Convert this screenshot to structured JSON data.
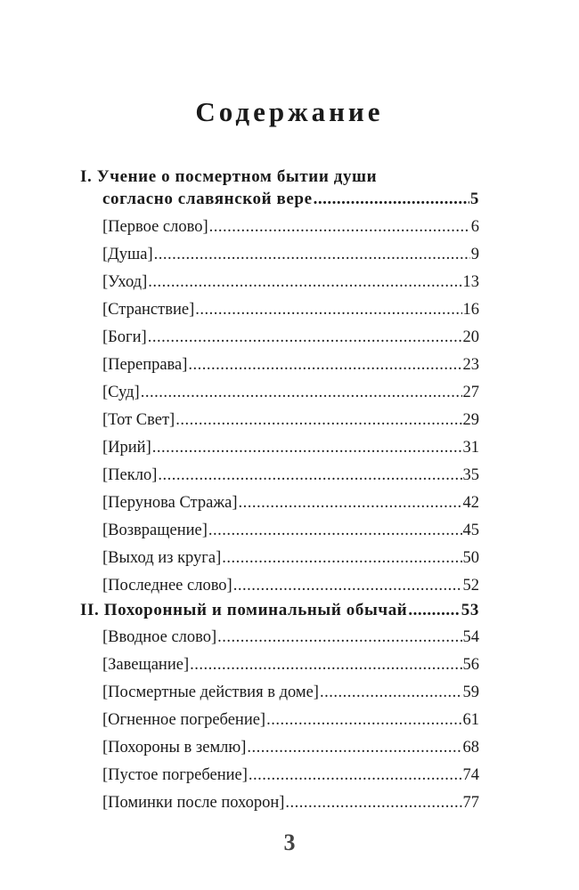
{
  "title": "Содержание",
  "sections": [
    {
      "number": "I.",
      "title_line1": "Учение о посмертном бытии души",
      "title_line2": "согласно славянской вере",
      "page": "5",
      "items": [
        {
          "label": "[Первое слово]",
          "page": "6"
        },
        {
          "label": "[Душа]",
          "page": "9"
        },
        {
          "label": "[Уход]",
          "page": "13"
        },
        {
          "label": "[Странствие]",
          "page": "16"
        },
        {
          "label": "[Боги]",
          "page": "20"
        },
        {
          "label": "[Переправа]",
          "page": "23"
        },
        {
          "label": "[Суд]",
          "page": "27"
        },
        {
          "label": "[Тот Свет]",
          "page": "29"
        },
        {
          "label": "[Ирий]",
          "page": "31"
        },
        {
          "label": "[Пекло]",
          "page": "35"
        },
        {
          "label": "[Перунова Стража]",
          "page": "42"
        },
        {
          "label": "[Возвращение]",
          "page": "45"
        },
        {
          "label": "[Выход из круга]",
          "page": "50"
        },
        {
          "label": "[Последнее слово]",
          "page": "52"
        }
      ]
    },
    {
      "number": "II.",
      "title_line1": "Похоронный и поминальный обычай",
      "page": "53",
      "items": [
        {
          "label": "[Вводное слово]",
          "page": "54"
        },
        {
          "label": "[Завещание]",
          "page": "56"
        },
        {
          "label": "[Посмертные действия в доме]",
          "page": "59"
        },
        {
          "label": "[Огненное погребение]",
          "page": "61"
        },
        {
          "label": "[Похороны в землю]",
          "page": "68"
        },
        {
          "label": "[Пустое погребение]",
          "page": "74"
        },
        {
          "label": "[Поминки после похорон]",
          "page": "77"
        }
      ]
    }
  ],
  "page_number": "3"
}
